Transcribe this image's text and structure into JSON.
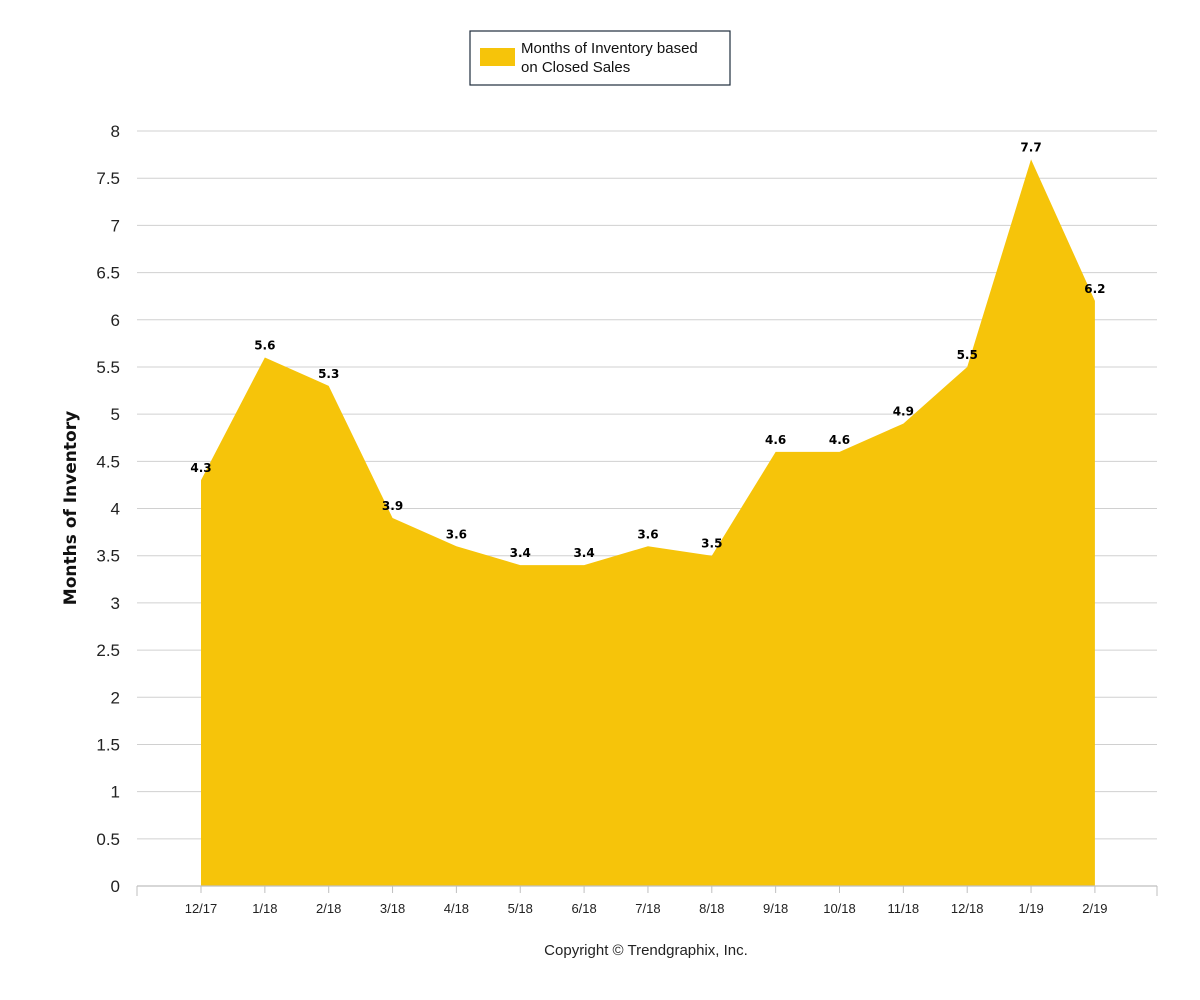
{
  "chart_data": {
    "type": "area",
    "categories": [
      "12/17",
      "1/18",
      "2/18",
      "3/18",
      "4/18",
      "5/18",
      "6/18",
      "7/18",
      "8/18",
      "9/18",
      "10/18",
      "11/18",
      "12/18",
      "1/19",
      "2/19"
    ],
    "series": [
      {
        "name": "Months of Inventory based on Closed Sales",
        "values": [
          4.3,
          5.6,
          5.3,
          3.9,
          3.6,
          3.4,
          3.4,
          3.6,
          3.5,
          4.6,
          4.6,
          4.9,
          5.5,
          7.7,
          6.2
        ],
        "color": "#f6c40a"
      }
    ],
    "xlabel": "",
    "ylabel": "Months of Inventory",
    "ylim": [
      0,
      8
    ],
    "yticks": [
      "0",
      "0.5",
      "1",
      "1.5",
      "2",
      "2.5",
      "3",
      "3.5",
      "4",
      "4.5",
      "5",
      "5.5",
      "6",
      "6.5",
      "7",
      "7.5",
      "8"
    ],
    "grid": true,
    "legend_position": "top-center",
    "legend_lines": [
      "Months of Inventory based",
      "on Closed Sales"
    ]
  },
  "footer": {
    "copyright": "Copyright © Trendgraphix, Inc."
  },
  "colors": {
    "area": "#f6c40a",
    "grid": "#d0d0d0",
    "axis": "#bfbfbf",
    "legend_border": "#1f2d3d"
  }
}
